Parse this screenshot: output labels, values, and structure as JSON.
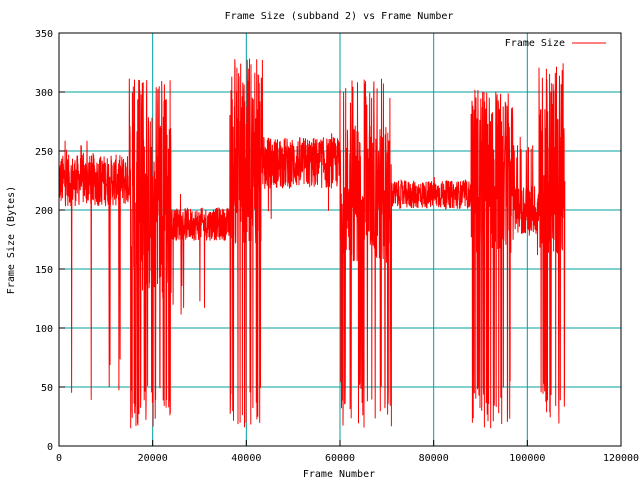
{
  "chart_data": {
    "type": "line",
    "title": "Frame Size (subband 2) vs Frame Number",
    "xlabel": "Frame Number",
    "ylabel": "Frame Size (Bytes)",
    "xlim": [
      0,
      120000
    ],
    "ylim": [
      0,
      350
    ],
    "xticks": [
      0,
      20000,
      40000,
      60000,
      80000,
      100000,
      120000
    ],
    "yticks": [
      0,
      50,
      100,
      150,
      200,
      250,
      300,
      350
    ],
    "grid": true,
    "legend_position": "top-right",
    "series": [
      {
        "name": "Frame Size",
        "color": "#ff0000",
        "segments": [
          {
            "x0": 0,
            "x1": 15000,
            "base": 225,
            "jitter": 22,
            "peak": 265,
            "drop": 35,
            "dropRate": 0.012,
            "peakRate": 0.04
          },
          {
            "x0": 15000,
            "x1": 24000,
            "base": 205,
            "jitter": 80,
            "peak": 312,
            "drop": 15,
            "dropRate": 0.18,
            "peakRate": 0.12
          },
          {
            "x0": 24000,
            "x1": 36500,
            "base": 188,
            "jitter": 14,
            "peak": 215,
            "drop": 110,
            "dropRate": 0.03,
            "peakRate": 0.03
          },
          {
            "x0": 36500,
            "x1": 43500,
            "base": 240,
            "jitter": 70,
            "peak": 330,
            "drop": 15,
            "dropRate": 0.15,
            "peakRate": 0.14
          },
          {
            "x0": 43500,
            "x1": 60000,
            "base": 240,
            "jitter": 22,
            "peak": 268,
            "drop": 190,
            "dropRate": 0.01,
            "peakRate": 0.04
          },
          {
            "x0": 60000,
            "x1": 71000,
            "base": 215,
            "jitter": 60,
            "peak": 313,
            "drop": 15,
            "dropRate": 0.14,
            "peakRate": 0.1
          },
          {
            "x0": 71000,
            "x1": 88000,
            "base": 213,
            "jitter": 12,
            "peak": 230,
            "drop": 190,
            "dropRate": 0.01,
            "peakRate": 0.03
          },
          {
            "x0": 88000,
            "x1": 97000,
            "base": 228,
            "jitter": 65,
            "peak": 305,
            "drop": 15,
            "dropRate": 0.15,
            "peakRate": 0.12
          },
          {
            "x0": 97000,
            "x1": 102500,
            "base": 200,
            "jitter": 22,
            "peak": 262,
            "drop": 160,
            "dropRate": 0.02,
            "peakRate": 0.05
          },
          {
            "x0": 102500,
            "x1": 108000,
            "base": 225,
            "jitter": 65,
            "peak": 325,
            "drop": 15,
            "dropRate": 0.16,
            "peakRate": 0.14
          }
        ]
      }
    ]
  }
}
